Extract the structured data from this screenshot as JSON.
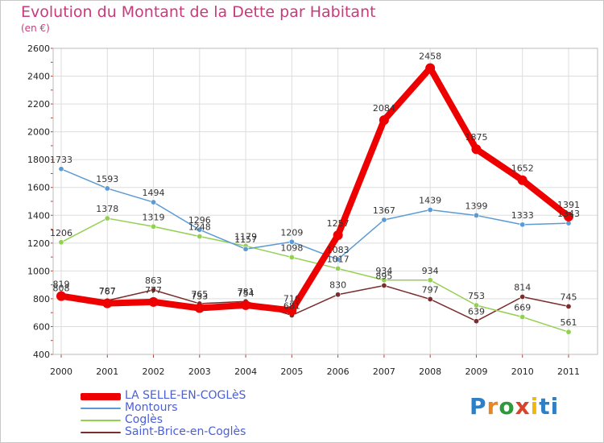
{
  "chart_data": {
    "type": "line",
    "title": "Evolution du Montant de la Dette par Habitant",
    "subtitle": "(en €)",
    "categories": [
      "2000",
      "2001",
      "2002",
      "2003",
      "2004",
      "2005",
      "2006",
      "2007",
      "2008",
      "2009",
      "2010",
      "2011"
    ],
    "ylim": [
      400,
      2600
    ],
    "yticks": [
      400,
      600,
      800,
      1000,
      1200,
      1400,
      1600,
      1800,
      2000,
      2200,
      2400,
      2600
    ],
    "grid": true,
    "legend_position": "bottom-left",
    "series": [
      {
        "name": "LA SELLE-EN-COGLèS",
        "color": "#ee0000",
        "width": 8,
        "values": [
          819,
          767,
          777,
          733,
          754,
          716,
          1257,
          2084,
          2458,
          1875,
          1652,
          1391
        ],
        "labels": [
          "819",
          "767",
          "777",
          "733",
          "754",
          "716",
          "1257",
          "2084",
          "2458",
          "1875",
          "1652",
          "1391"
        ]
      },
      {
        "name": "Montours",
        "color": "#5b9bd5",
        "width": 1.5,
        "values": [
          1733,
          1593,
          1494,
          1296,
          1157,
          1209,
          1083,
          1367,
          1439,
          1399,
          1333,
          1343
        ],
        "labels": [
          "1733",
          "1593",
          "1494",
          "1296",
          "1157",
          "1209",
          "1083",
          "1367",
          "1439",
          "1399",
          "1333",
          "1343"
        ]
      },
      {
        "name": "Coglès",
        "color": "#92d050",
        "width": 1.5,
        "values": [
          1206,
          1378,
          1319,
          1248,
          1179,
          1098,
          1017,
          934,
          934,
          753,
          669,
          561
        ],
        "labels": [
          "1206",
          "1378",
          "1319",
          "1248",
          "1179",
          "1098",
          "1017",
          "934",
          "934",
          "753",
          "669",
          "561"
        ]
      },
      {
        "name": "Saint-Brice-en-Coglès",
        "color": "#7b2c2c",
        "width": 1.5,
        "values": [
          808,
          787,
          863,
          765,
          781,
          681,
          830,
          895,
          797,
          639,
          814,
          745
        ],
        "labels": [
          "808",
          "787",
          "863",
          "765",
          "781",
          "681",
          "830",
          "895",
          "797",
          "639",
          "814",
          "745"
        ]
      }
    ]
  },
  "brand": {
    "text": "Proxiti"
  }
}
